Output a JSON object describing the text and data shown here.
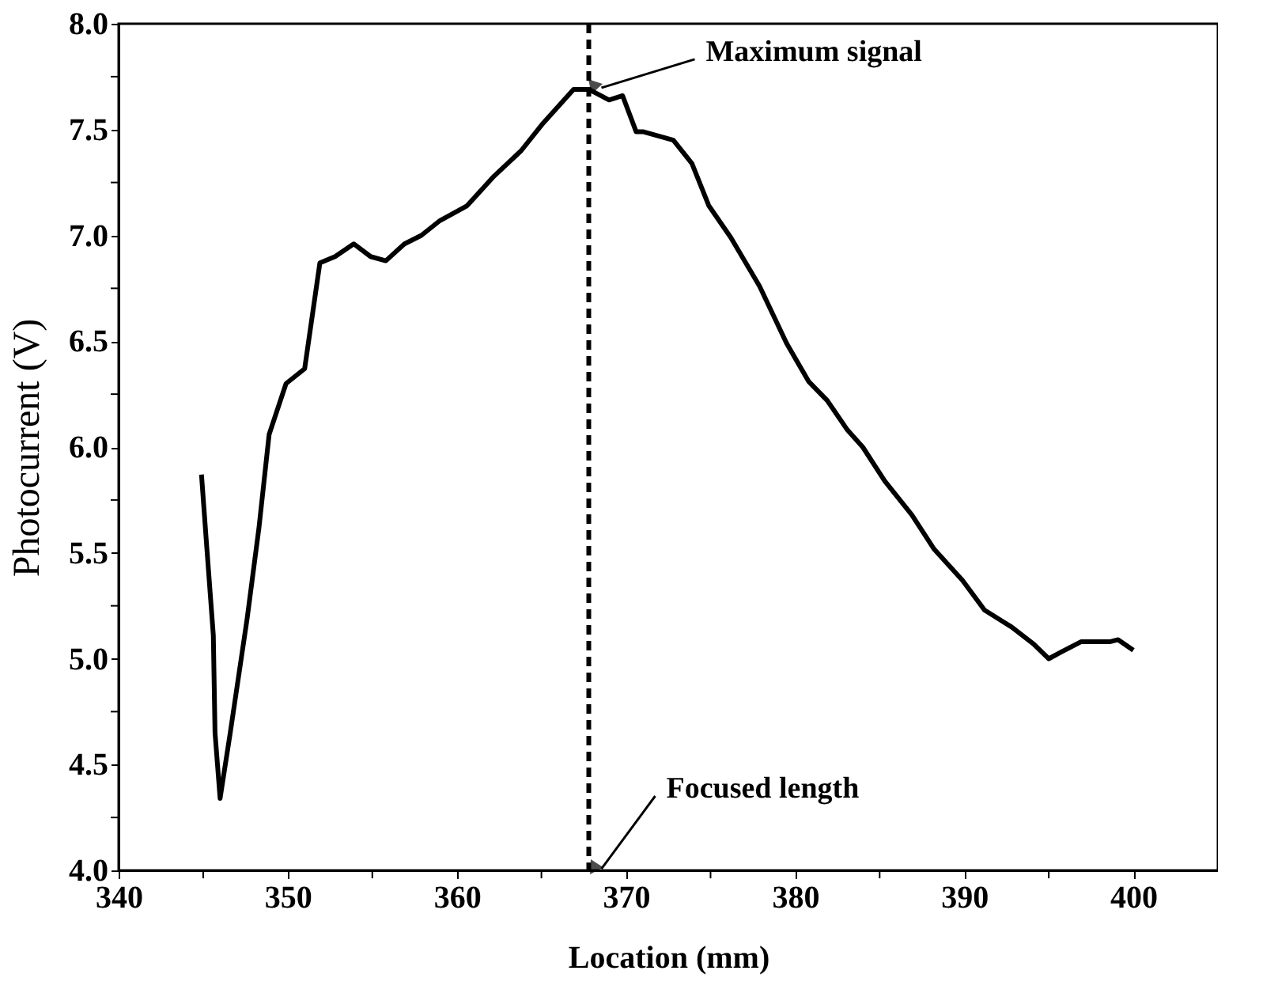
{
  "chart_data": {
    "type": "line",
    "xlabel": "Location (mm)",
    "ylabel": "Photocurrent (V)",
    "xlim": [
      340,
      405
    ],
    "ylim": [
      4.0,
      8.0
    ],
    "xticks": [
      340,
      {
        "value": 345,
        "label": null
      },
      350,
      {
        "value": 355,
        "label": null
      },
      360,
      {
        "value": 365,
        "label": null
      },
      370,
      {
        "value": 375,
        "label": null
      },
      380,
      {
        "value": 385,
        "label": null
      },
      390,
      {
        "value": 395,
        "label": null
      },
      400
    ],
    "yticks": [
      {
        "value": 4.0,
        "label": "4.0"
      },
      {
        "value": 4.25,
        "label": null
      },
      4.5,
      {
        "value": 4.75,
        "label": null
      },
      {
        "value": 5.0,
        "label": "5.0"
      },
      {
        "value": 5.25,
        "label": null
      },
      5.5,
      {
        "value": 5.75,
        "label": null
      },
      {
        "value": 6.0,
        "label": "6.0"
      },
      {
        "value": 6.25,
        "label": null
      },
      6.5,
      {
        "value": 6.75,
        "label": null
      },
      {
        "value": 7.0,
        "label": "7.0"
      },
      {
        "value": 7.25,
        "label": null
      },
      7.5,
      {
        "value": 7.75,
        "label": null
      },
      {
        "value": 8.0,
        "label": "8.0"
      }
    ],
    "grid": false,
    "marker": "none",
    "line_style": "solid",
    "series": [
      {
        "color": "#000000",
        "x": [
          344.9,
          345.2,
          345.6,
          345.7,
          346.0,
          346.6,
          347.6,
          348.3,
          348.9,
          349.9,
          351.0,
          351.9,
          352.8,
          353.9,
          354.9,
          355.8,
          356.9,
          357.9,
          359.0,
          360.6,
          362.2,
          363.8,
          365.1,
          366.9,
          367.8,
          369.0,
          369.8,
          370.6,
          371.0,
          372.8,
          373.9,
          374.9,
          376.2,
          377.9,
          379.5,
          380.8,
          381.9,
          383.1,
          384.0,
          385.3,
          386.9,
          388.2,
          389.9,
          391.2,
          392.8,
          394.1,
          395.0,
          395.7,
          396.9,
          398.6,
          399.1,
          400.0
        ],
        "values": [
          5.87,
          5.54,
          5.11,
          4.65,
          4.34,
          4.65,
          5.19,
          5.62,
          6.06,
          6.3,
          6.37,
          6.87,
          6.9,
          6.96,
          6.9,
          6.88,
          6.96,
          7.0,
          7.07,
          7.14,
          7.28,
          7.4,
          7.53,
          7.69,
          7.69,
          7.64,
          7.66,
          7.49,
          7.49,
          7.45,
          7.34,
          7.14,
          6.99,
          6.76,
          6.49,
          6.31,
          6.22,
          6.08,
          6.0,
          5.84,
          5.68,
          5.52,
          5.37,
          5.23,
          5.15,
          5.07,
          5.0,
          5.03,
          5.08,
          5.08,
          5.09,
          5.04
        ]
      }
    ],
    "ref_lines": [
      {
        "axis": "x",
        "value": 367.8,
        "label": null,
        "color": "#000000",
        "line_style": "dashed"
      }
    ],
    "annotations": [
      {
        "text": "Maximum signal",
        "x": 367.8,
        "y": 7.69
      },
      {
        "text": "Focused length",
        "x": 367.8,
        "y": 4.0
      }
    ]
  }
}
